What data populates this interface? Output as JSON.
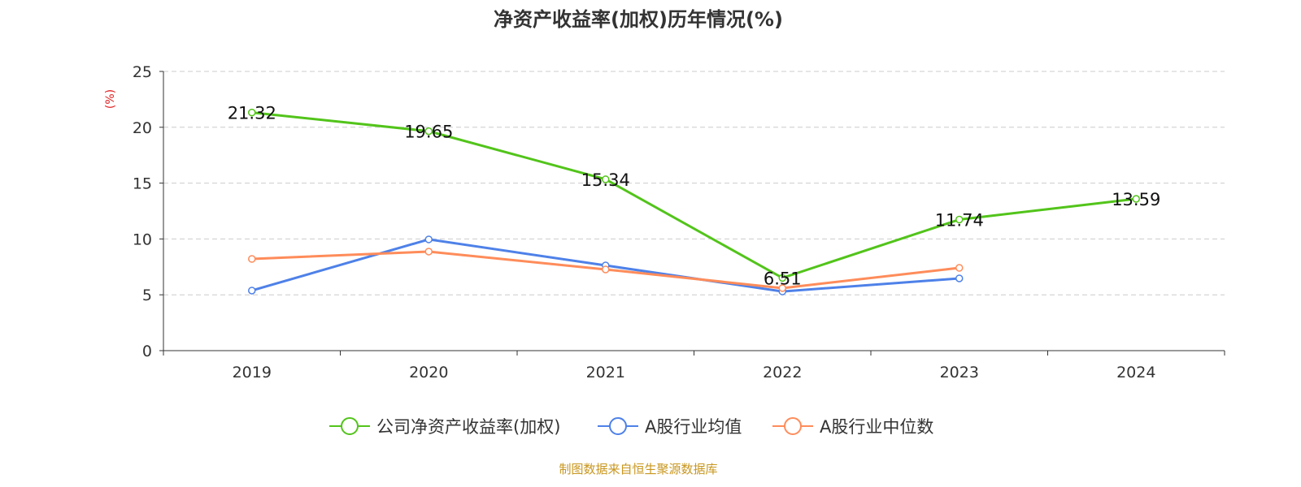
{
  "chart_data": {
    "type": "line",
    "title": "净资产收益率(加权)历年情况(%)",
    "ylabel": "(%)",
    "xlabel": "",
    "categories": [
      "2019",
      "2020",
      "2021",
      "2022",
      "2023",
      "2024"
    ],
    "ylim": [
      0,
      25
    ],
    "yticks": [
      0,
      5,
      10,
      15,
      20,
      25
    ],
    "grid": true,
    "legend_position": "bottom",
    "series": [
      {
        "name": "公司净资产收益率(加权)",
        "color": "#52c41a",
        "values": [
          21.32,
          19.65,
          15.34,
          6.51,
          11.74,
          13.59
        ],
        "labels": [
          "21.32",
          "19.65",
          "15.34",
          "6.51",
          "11.74",
          "13.59"
        ]
      },
      {
        "name": "A股行业均值",
        "color": "#4e81e8",
        "values": [
          5.38,
          9.96,
          7.63,
          5.3,
          6.47,
          null
        ]
      },
      {
        "name": "A股行业中位数",
        "color": "#ff8c5a",
        "values": [
          8.21,
          8.87,
          7.27,
          5.6,
          7.41,
          null
        ]
      }
    ]
  },
  "footer": "制图数据来自恒生聚源数据库"
}
